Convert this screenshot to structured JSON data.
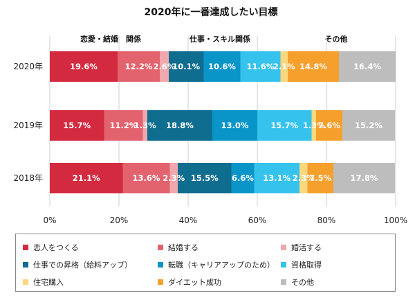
{
  "chart_data": {
    "type": "bar",
    "orientation": "horizontal",
    "stacked": true,
    "title": "2020年に一番達成したい目標",
    "group_labels": [
      "恋愛・結婚　関係",
      "仕事・スキル関係",
      "その他"
    ],
    "categories": [
      "2020年",
      "2019年",
      "2018年"
    ],
    "xlim": [
      0,
      100
    ],
    "x_ticks": [
      "0%",
      "20%",
      "40%",
      "60%",
      "80%",
      "100%"
    ],
    "grid": true,
    "legend_position": "bottom",
    "series": [
      {
        "name": "恋人をつくる",
        "color": "#d42a40",
        "values": [
          19.6,
          15.7,
          21.1
        ],
        "labels": [
          "19.6%",
          "15.7%",
          "21.1%"
        ]
      },
      {
        "name": "結婚する",
        "color": "#e2636e",
        "values": [
          12.2,
          11.2,
          13.6
        ],
        "labels": [
          "12.2%",
          "11.2%",
          "13.6%"
        ]
      },
      {
        "name": "婚活する",
        "color": "#f0a7ad",
        "values": [
          2.6,
          1.3,
          2.3
        ],
        "labels": [
          "2.6%",
          "1.3%",
          "2.3%"
        ]
      },
      {
        "name": "仕事での昇格（給料アップ）",
        "color": "#0f6d8f",
        "values": [
          10.1,
          18.8,
          15.5
        ],
        "labels": [
          "10.1%",
          "18.8%",
          "15.5%"
        ]
      },
      {
        "name": "転職（キャリアアップのため）",
        "color": "#0a95c8",
        "values": [
          10.6,
          13.0,
          6.6
        ],
        "labels": [
          "10.6%",
          "13.0%",
          "6.6%"
        ]
      },
      {
        "name": "資格取得",
        "color": "#35c3ee",
        "values": [
          11.6,
          15.7,
          13.1
        ],
        "labels": [
          "11.6%",
          "15.7%",
          "13.1%"
        ]
      },
      {
        "name": "住宅購入",
        "color": "#fbd77d",
        "values": [
          2.1,
          1.3,
          2.3
        ],
        "labels": [
          "2.1%",
          "1.3%",
          "2.3%"
        ]
      },
      {
        "name": "ダイエット成功",
        "color": "#f5a02d",
        "values": [
          14.8,
          7.6,
          7.5
        ],
        "labels": [
          "14.8%",
          "7.6%",
          "7.5%"
        ]
      },
      {
        "name": "その他",
        "color": "#bdbdbd",
        "values": [
          16.4,
          15.2,
          17.8
        ],
        "labels": [
          "16.4%",
          "15.2%",
          "17.8%"
        ]
      }
    ]
  }
}
